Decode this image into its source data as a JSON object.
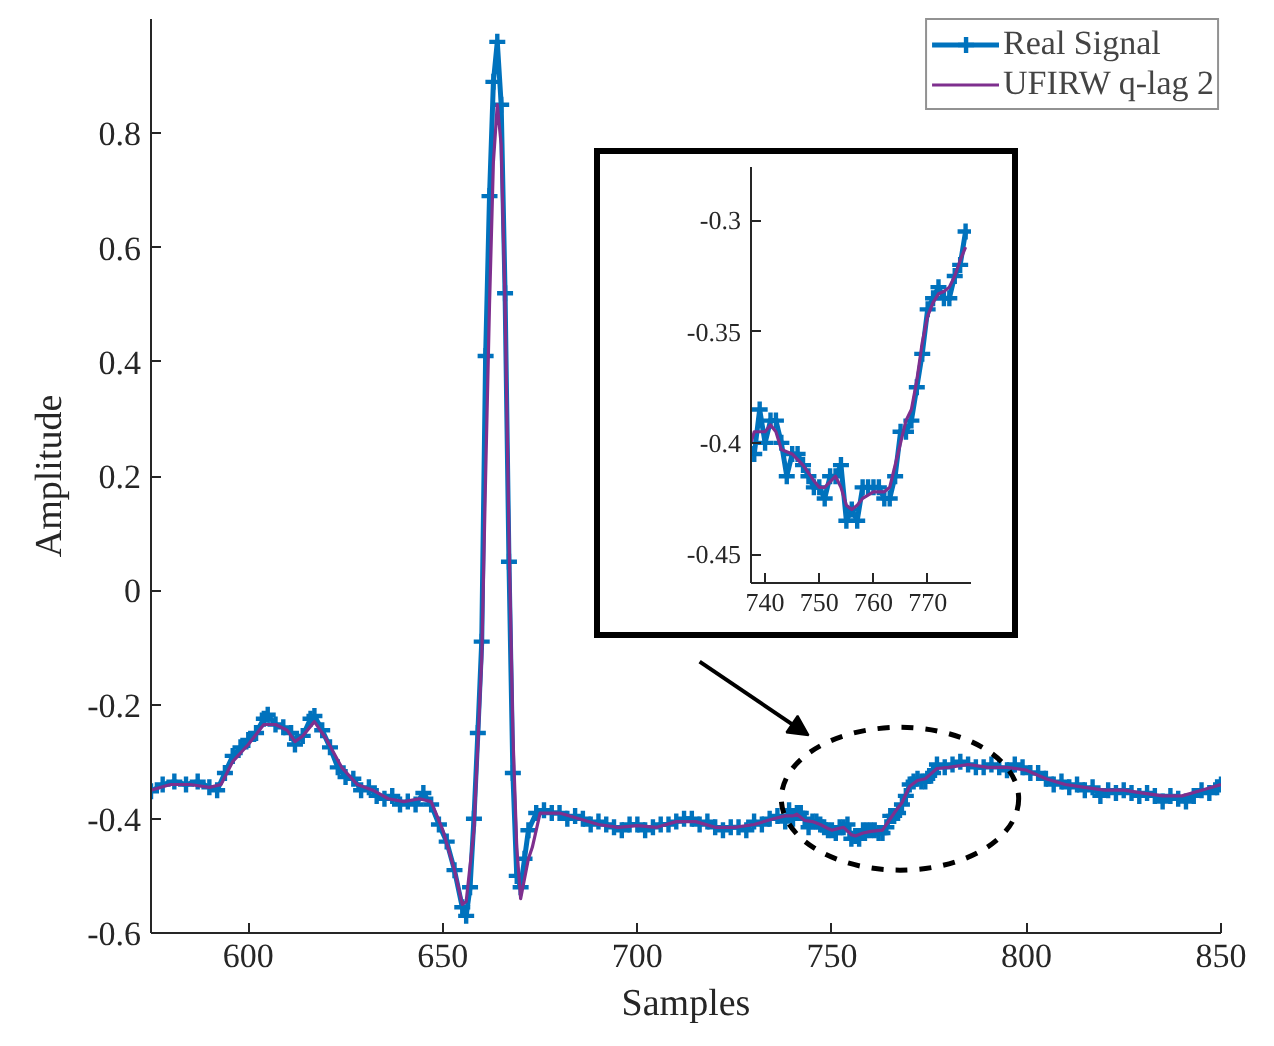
{
  "chart_data": [
    {
      "type": "line",
      "xlabel": "Samples",
      "ylabel": "Amplitude",
      "xlim": [
        575,
        850
      ],
      "ylim": [
        -0.6,
        1.0
      ],
      "xticks": [
        600,
        650,
        700,
        750,
        800,
        850
      ],
      "yticks": [
        -0.6,
        -0.4,
        -0.2,
        0,
        0.2,
        0.4,
        0.6,
        0.8
      ],
      "legend": "top right",
      "series": [
        {
          "name": "Real Signal",
          "color": "#0072bd",
          "marker": "cross",
          "x": [
            575,
            578,
            581,
            584,
            587,
            590,
            592,
            594,
            596,
            598,
            600,
            602,
            604,
            605,
            607,
            609,
            611,
            612,
            614,
            616,
            617,
            619,
            621,
            623,
            625,
            627,
            629,
            631,
            633,
            635,
            637,
            639,
            641,
            643,
            645,
            647,
            649,
            651,
            653,
            655,
            656,
            657,
            658,
            659,
            660,
            661,
            662,
            663,
            664,
            665,
            666,
            667,
            668,
            669,
            670,
            671,
            672,
            674,
            676,
            678,
            680,
            682,
            684,
            686,
            688,
            690,
            692,
            694,
            696,
            698,
            700,
            702,
            704,
            706,
            708,
            710,
            712,
            714,
            716,
            718,
            720,
            722,
            724,
            726,
            728,
            730,
            732,
            734,
            736,
            738,
            739,
            740,
            741,
            742,
            743,
            744,
            745,
            746,
            747,
            748,
            749,
            750,
            751,
            752,
            753,
            754,
            755,
            756,
            757,
            758,
            759,
            760,
            761,
            762,
            763,
            764,
            765,
            766,
            767,
            768,
            769,
            770,
            771,
            772,
            773,
            774,
            775,
            776,
            777,
            779,
            781,
            783,
            785,
            787,
            789,
            791,
            793,
            795,
            797,
            799,
            801,
            803,
            805,
            807,
            809,
            811,
            813,
            815,
            817,
            819,
            821,
            823,
            825,
            827,
            829,
            831,
            833,
            835,
            837,
            839,
            841,
            843,
            845,
            847,
            849,
            850
          ],
          "values": [
            -0.352,
            -0.34,
            -0.335,
            -0.34,
            -0.335,
            -0.345,
            -0.35,
            -0.32,
            -0.29,
            -0.275,
            -0.262,
            -0.25,
            -0.225,
            -0.218,
            -0.235,
            -0.24,
            -0.25,
            -0.27,
            -0.255,
            -0.225,
            -0.22,
            -0.245,
            -0.275,
            -0.31,
            -0.327,
            -0.33,
            -0.35,
            -0.345,
            -0.36,
            -0.365,
            -0.36,
            -0.375,
            -0.37,
            -0.375,
            -0.355,
            -0.375,
            -0.41,
            -0.44,
            -0.49,
            -0.555,
            -0.57,
            -0.52,
            -0.4,
            -0.25,
            -0.09,
            0.41,
            0.69,
            0.89,
            0.96,
            0.85,
            0.52,
            0.05,
            -0.32,
            -0.5,
            -0.52,
            -0.47,
            -0.42,
            -0.39,
            -0.385,
            -0.39,
            -0.39,
            -0.4,
            -0.395,
            -0.4,
            -0.41,
            -0.405,
            -0.41,
            -0.415,
            -0.42,
            -0.41,
            -0.41,
            -0.42,
            -0.415,
            -0.41,
            -0.41,
            -0.405,
            -0.4,
            -0.4,
            -0.41,
            -0.405,
            -0.415,
            -0.42,
            -0.415,
            -0.415,
            -0.42,
            -0.405,
            -0.41,
            -0.4,
            -0.395,
            -0.405,
            -0.385,
            -0.4,
            -0.39,
            -0.39,
            -0.4,
            -0.415,
            -0.405,
            -0.405,
            -0.41,
            -0.415,
            -0.42,
            -0.42,
            -0.425,
            -0.415,
            -0.415,
            -0.41,
            -0.435,
            -0.43,
            -0.435,
            -0.42,
            -0.42,
            -0.42,
            -0.42,
            -0.425,
            -0.425,
            -0.415,
            -0.395,
            -0.395,
            -0.39,
            -0.375,
            -0.36,
            -0.34,
            -0.335,
            -0.33,
            -0.335,
            -0.335,
            -0.325,
            -0.32,
            -0.305,
            -0.31,
            -0.305,
            -0.3,
            -0.305,
            -0.31,
            -0.31,
            -0.305,
            -0.31,
            -0.315,
            -0.305,
            -0.31,
            -0.32,
            -0.32,
            -0.33,
            -0.34,
            -0.335,
            -0.345,
            -0.34,
            -0.35,
            -0.345,
            -0.36,
            -0.35,
            -0.355,
            -0.35,
            -0.355,
            -0.36,
            -0.355,
            -0.36,
            -0.37,
            -0.36,
            -0.365,
            -0.37,
            -0.36,
            -0.35,
            -0.355,
            -0.345,
            -0.34
          ]
        },
        {
          "name": "UFIRW q-lag 2",
          "color": "#7e2f8e",
          "marker": "none",
          "x": [
            575,
            580,
            585,
            590,
            593,
            596,
            600,
            604,
            607,
            610,
            612,
            614,
            617,
            620,
            624,
            628,
            632,
            636,
            640,
            644,
            647,
            650,
            653,
            655,
            656,
            658,
            660,
            661,
            662,
            663,
            664,
            665,
            666,
            667,
            668,
            669,
            670,
            672,
            673,
            675,
            680,
            685,
            690,
            695,
            700,
            705,
            710,
            715,
            720,
            725,
            730,
            735,
            738,
            740,
            741,
            743,
            745,
            747,
            749,
            750,
            753,
            755,
            756,
            758,
            760,
            763,
            765,
            766,
            768,
            770,
            772,
            774,
            776,
            777,
            780,
            785,
            790,
            795,
            800,
            805,
            810,
            815,
            820,
            825,
            830,
            835,
            840,
            845,
            850
          ],
          "values": [
            -0.35,
            -0.34,
            -0.34,
            -0.345,
            -0.34,
            -0.3,
            -0.27,
            -0.235,
            -0.235,
            -0.245,
            -0.265,
            -0.255,
            -0.23,
            -0.26,
            -0.31,
            -0.34,
            -0.35,
            -0.365,
            -0.37,
            -0.365,
            -0.37,
            -0.42,
            -0.49,
            -0.55,
            -0.545,
            -0.42,
            -0.12,
            0.2,
            0.5,
            0.75,
            0.85,
            0.78,
            0.5,
            0.1,
            -0.25,
            -0.45,
            -0.54,
            -0.47,
            -0.45,
            -0.39,
            -0.39,
            -0.4,
            -0.41,
            -0.415,
            -0.412,
            -0.415,
            -0.405,
            -0.405,
            -0.415,
            -0.415,
            -0.41,
            -0.4,
            -0.395,
            -0.395,
            -0.392,
            -0.403,
            -0.405,
            -0.41,
            -0.417,
            -0.42,
            -0.415,
            -0.428,
            -0.43,
            -0.425,
            -0.422,
            -0.42,
            -0.4,
            -0.39,
            -0.372,
            -0.343,
            -0.333,
            -0.33,
            -0.318,
            -0.312,
            -0.31,
            -0.305,
            -0.31,
            -0.31,
            -0.315,
            -0.33,
            -0.34,
            -0.345,
            -0.35,
            -0.35,
            -0.355,
            -0.36,
            -0.36,
            -0.35,
            -0.34
          ]
        }
      ]
    },
    {
      "type": "line",
      "xlim": [
        737.4,
        778
      ],
      "ylim": [
        -0.463,
        -0.276
      ],
      "xticks": [
        740,
        750,
        760,
        770
      ],
      "yticks": [
        -0.45,
        -0.4,
        -0.35,
        -0.3
      ],
      "series": [
        {
          "color": "#0072bd",
          "marker": "cross",
          "x": [
            738,
            739,
            740,
            741,
            742,
            743,
            744,
            745,
            746,
            747,
            748,
            749,
            750,
            751,
            752,
            753,
            754,
            755,
            756,
            757,
            758,
            759,
            760,
            761,
            762,
            763,
            764,
            765,
            766,
            767,
            768,
            769,
            770,
            771,
            772,
            773,
            774,
            775,
            776,
            777
          ],
          "values": [
            -0.405,
            -0.385,
            -0.4,
            -0.39,
            -0.39,
            -0.4,
            -0.415,
            -0.405,
            -0.405,
            -0.41,
            -0.415,
            -0.42,
            -0.42,
            -0.425,
            -0.415,
            -0.415,
            -0.41,
            -0.435,
            -0.43,
            -0.435,
            -0.42,
            -0.42,
            -0.42,
            -0.42,
            -0.425,
            -0.425,
            -0.415,
            -0.395,
            -0.395,
            -0.39,
            -0.375,
            -0.36,
            -0.34,
            -0.335,
            -0.33,
            -0.335,
            -0.335,
            -0.325,
            -0.32,
            -0.305
          ]
        },
        {
          "color": "#7e2f8e",
          "marker": "none",
          "x": [
            737.4,
            738,
            739,
            740,
            741,
            742,
            743,
            745,
            747,
            749,
            750,
            751,
            753,
            754,
            755,
            756,
            757,
            758,
            760,
            762,
            763,
            764,
            765,
            766,
            767,
            768,
            769,
            770,
            771,
            772,
            773,
            774,
            775,
            776,
            777
          ],
          "values": [
            -0.4,
            -0.395,
            -0.395,
            -0.395,
            -0.392,
            -0.395,
            -0.403,
            -0.405,
            -0.41,
            -0.417,
            -0.42,
            -0.42,
            -0.415,
            -0.42,
            -0.428,
            -0.43,
            -0.428,
            -0.425,
            -0.422,
            -0.422,
            -0.42,
            -0.41,
            -0.4,
            -0.39,
            -0.385,
            -0.372,
            -0.355,
            -0.343,
            -0.337,
            -0.333,
            -0.332,
            -0.33,
            -0.325,
            -0.318,
            -0.312
          ]
        }
      ]
    }
  ]
}
